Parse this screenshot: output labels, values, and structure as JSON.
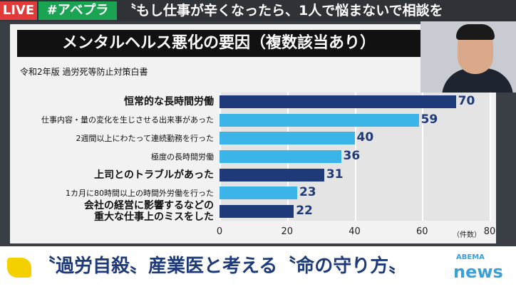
{
  "header": {
    "live": "LIVE",
    "hashtag": "#アベプラ",
    "ticker": "〝もし仕事が辛くなったら、1人で悩まないで相談を"
  },
  "chart_data": {
    "type": "bar",
    "orientation": "horizontal",
    "title": "メンタルヘルス悪化の要因（複数該当あり）",
    "subtitle": "令和2年版 過労死等防止対策白書",
    "categories": [
      "恒常的な長時間労働",
      "仕事内容・量の変化を生じさせる出来事があった",
      "2週間以上にわたって連続勤務を行った",
      "極度の長時間労働",
      "上司とのトラブルがあった",
      "1カ月に80時間以上の時間外労働を行った",
      "会社の経営に影響するなどの\n重大な仕事上のミスをした"
    ],
    "bold_labels": [
      true,
      false,
      false,
      false,
      true,
      false,
      true
    ],
    "values": [
      70,
      59,
      40,
      36,
      31,
      23,
      22
    ],
    "colors": [
      "#1e3a78",
      "#3bb4e8",
      "#3bb4e8",
      "#3bb4e8",
      "#1e3a78",
      "#3bb4e8",
      "#1e3a78"
    ],
    "xlim": [
      0,
      80
    ],
    "xticks": [
      0,
      20,
      40,
      60,
      80
    ],
    "x_unit": "（件数）",
    "grid": true
  },
  "caption": {
    "text": "〝過労自殺〟産業医と考える〝命の守り方〟",
    "logo_top": "ABEMA",
    "logo_bottom": "news"
  }
}
